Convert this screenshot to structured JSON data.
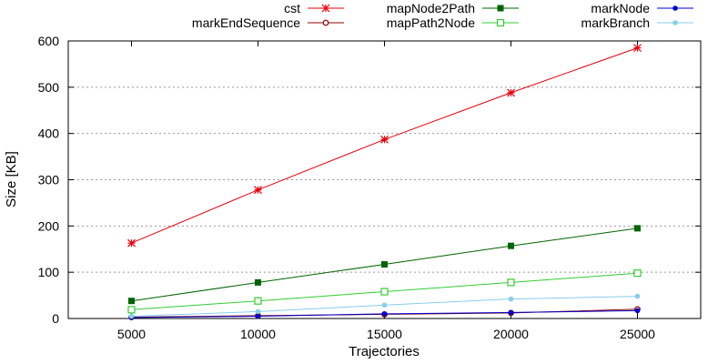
{
  "chart_data": {
    "type": "line",
    "xlabel": "Trajectories",
    "ylabel": "Size [KB]",
    "x": [
      5000,
      10000,
      15000,
      20000,
      25000
    ],
    "xlim": [
      2500,
      27500
    ],
    "ylim": [
      0,
      600
    ],
    "xticks": [
      5000,
      10000,
      15000,
      20000,
      25000
    ],
    "yticks": [
      0,
      100,
      200,
      300,
      400,
      500,
      600
    ],
    "grid": "horizontal dotted",
    "legend_position": "top, outside plot, three columns",
    "series": [
      {
        "name": "cst",
        "color": "#e8000b",
        "marker": "star",
        "values": [
          163,
          278,
          387,
          488,
          585
        ]
      },
      {
        "name": "markEndSequence",
        "color": "#8b0000",
        "marker": "open-circle",
        "values": [
          3,
          6,
          9,
          12,
          20
        ]
      },
      {
        "name": "mapNode2Path",
        "color": "#006400",
        "marker": "filled-square",
        "values": [
          38,
          78,
          117,
          157,
          195
        ]
      },
      {
        "name": "mapPath2Node",
        "color": "#32cd32",
        "marker": "open-square",
        "values": [
          19,
          38,
          58,
          78,
          98
        ]
      },
      {
        "name": "markNode",
        "color": "#0000cd",
        "marker": "filled-circle",
        "values": [
          2,
          5,
          10,
          13,
          17
        ]
      },
      {
        "name": "markBranch",
        "color": "#87ceeb",
        "marker": "filled-circle",
        "values": [
          5,
          15,
          29,
          42,
          48
        ]
      }
    ]
  }
}
